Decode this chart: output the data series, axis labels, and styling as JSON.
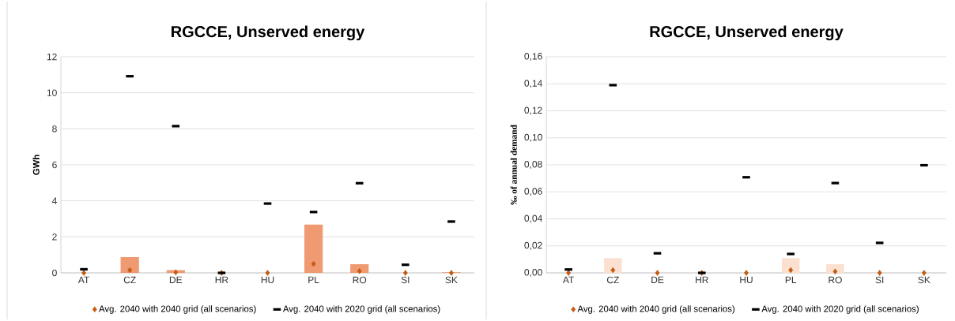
{
  "chart_data": [
    {
      "type": "bar",
      "title": "RGCCE, Unserved energy",
      "ylabel": "GWh",
      "categories": [
        "AT",
        "CZ",
        "DE",
        "HR",
        "HU",
        "PL",
        "RO",
        "SI",
        "SK"
      ],
      "series": [
        {
          "color": "#f09a72",
          "values": [
            null,
            0.88,
            0.15,
            null,
            null,
            2.68,
            0.48,
            null,
            0.03
          ]
        },
        {
          "type": "scatter",
          "name": "Avg. 2040 with 2040 grid (all scenarios)",
          "color": "#c55a11",
          "marker": "diamond",
          "values": [
            0,
            0.15,
            0.03,
            0,
            0,
            0.5,
            0.1,
            0,
            0
          ]
        },
        {
          "type": "scatter",
          "name": "Avg. 2040 with 2020 grid (all scenarios)",
          "color": "#000000",
          "values": [
            0.2,
            10.92,
            8.15,
            0,
            3.85,
            3.38,
            4.98,
            0.45,
            2.85
          ]
        }
      ],
      "ylim": [
        0,
        12
      ],
      "yticks": [
        0,
        2,
        4,
        6,
        8,
        10,
        12
      ],
      "grid": "y",
      "legend": "bottom"
    },
    {
      "type": "bar",
      "title": "RGCCE, Unserved energy",
      "ylabel": "‰ of annual demand",
      "categories": [
        "AT",
        "CZ",
        "DE",
        "HR",
        "HU",
        "PL",
        "RO",
        "SI",
        "SK"
      ],
      "series": [
        {
          "color": "#fbe0d0",
          "values": [
            null,
            0.011,
            null,
            null,
            null,
            0.011,
            0.0064,
            null,
            null
          ]
        },
        {
          "type": "scatter",
          "name": "Avg. 2040 with 2040 grid (all scenarios)",
          "color": "#c55a11",
          "marker": "diamond",
          "values": [
            0,
            0.002,
            0,
            0,
            0,
            0.002,
            0.001,
            0,
            0
          ]
        },
        {
          "type": "scatter",
          "name": "Avg. 2040 with 2020 grid (all scenarios)",
          "color": "#000000",
          "values": [
            0.0025,
            0.139,
            0.0145,
            0,
            0.0708,
            0.014,
            0.0665,
            0.0222,
            0.0797
          ]
        }
      ],
      "ylim": [
        0,
        0.16
      ],
      "yticks": [
        {
          "value": 0,
          "label": "0,00"
        },
        {
          "value": 0.02,
          "label": "0,02"
        },
        {
          "value": 0.04,
          "label": "0,04"
        },
        {
          "value": 0.06,
          "label": "0,06"
        },
        {
          "value": 0.08,
          "label": "0,08"
        },
        {
          "value": 0.1,
          "label": "0,10"
        },
        {
          "value": 0.12,
          "label": "0,12"
        },
        {
          "value": 0.14,
          "label": "0,14"
        },
        {
          "value": 0.16,
          "label": "0,16"
        }
      ],
      "grid": "y",
      "legend": "bottom"
    }
  ]
}
